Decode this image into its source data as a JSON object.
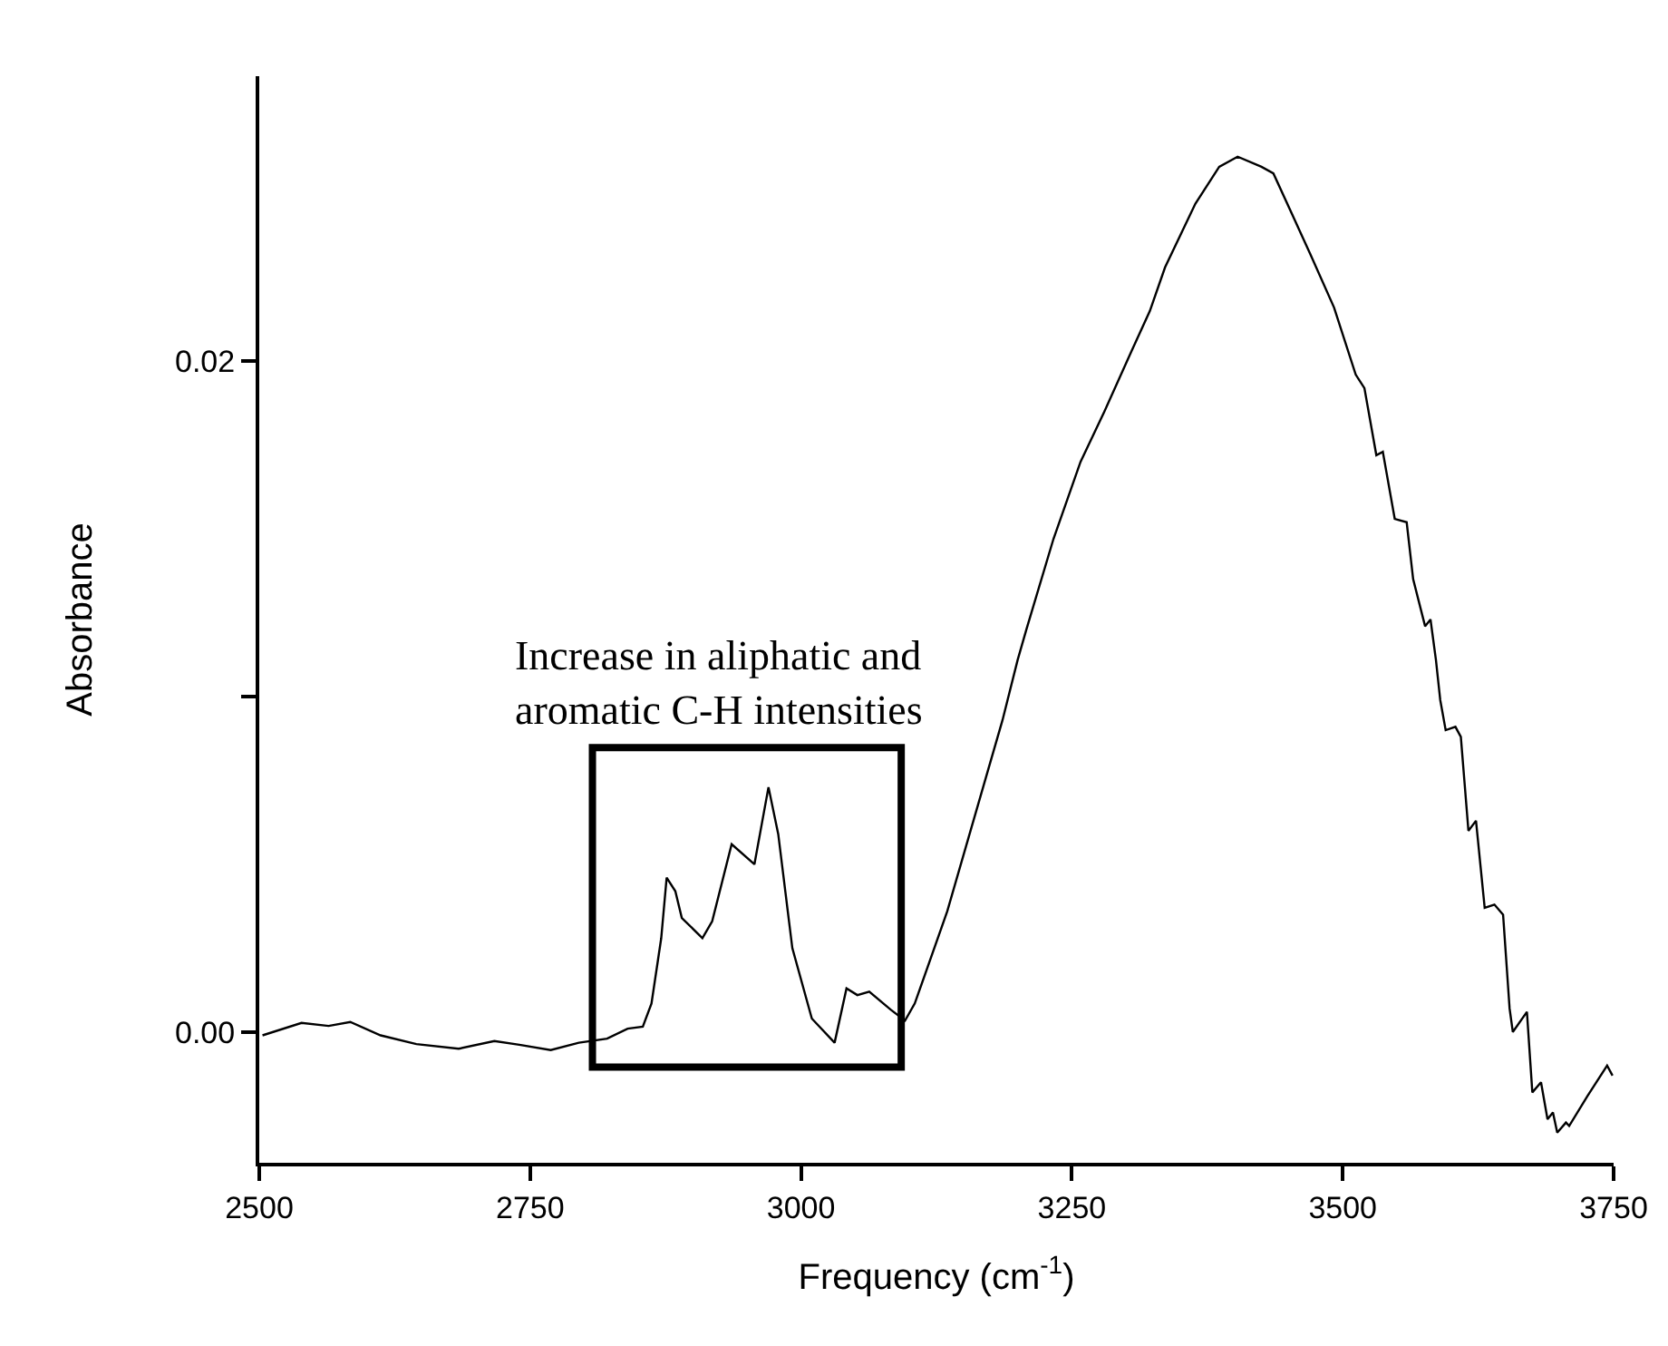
{
  "chart_data": {
    "type": "line",
    "xlabel": "Frequency (cm$^{-1}$)",
    "ylabel": "Absorbance",
    "xlim": [
      2500,
      3750
    ],
    "xticks": [
      2500,
      2750,
      3000,
      3250,
      3500,
      3750
    ],
    "ylim": [
      -0.0039,
      0.0285
    ],
    "yticks": [
      {
        "value": 0.0,
        "label": "0.00"
      },
      {
        "value": 0.01,
        "label": null
      },
      {
        "value": 0.02,
        "label": "0.02"
      }
    ],
    "marker": "none",
    "line_style": "solid",
    "annotations": [
      "Increase in aliphatic and\naromatic C-H intensities"
    ],
    "series": [
      {
        "color": "#000000",
        "x": [
          2503,
          2539,
          2564,
          2584,
          2612,
          2645,
          2684,
          2717,
          2740,
          2769,
          2795,
          2821,
          2840,
          2854,
          2862,
          2871,
          2876,
          2884,
          2890,
          2909,
          2918,
          2936,
          2957,
          2970,
          2979,
          2992,
          3010,
          3031,
          3042,
          3052,
          3063,
          3083,
          3096,
          3105,
          3135,
          3169,
          3186,
          3200,
          3208,
          3233,
          3258,
          3280,
          3305,
          3322,
          3336,
          3364,
          3386,
          3403,
          3425,
          3436,
          3453,
          3470,
          3492,
          3512,
          3520,
          3531,
          3537,
          3548,
          3559,
          3565,
          3576,
          3581,
          3586,
          3590,
          3595,
          3604,
          3609,
          3616,
          3623,
          3631,
          3640,
          3648,
          3654,
          3657,
          3670,
          3675,
          3683,
          3689,
          3694,
          3698,
          3706,
          3709,
          3726,
          3744,
          3749
        ],
        "values": [
          -0.0001,
          0.00027,
          0.00018,
          0.0003,
          -0.0001,
          -0.00036,
          -0.0005,
          -0.00027,
          -0.00038,
          -0.00054,
          -0.00032,
          -0.0002,
          0.0001,
          0.00016,
          0.00085,
          0.0028,
          0.0046,
          0.0042,
          0.0034,
          0.0028,
          0.0033,
          0.0056,
          0.005,
          0.0073,
          0.0059,
          0.0025,
          0.0004,
          -0.00032,
          0.0013,
          0.0011,
          0.0012,
          0.00066,
          0.00034,
          0.00085,
          0.0036,
          0.0074,
          0.0093,
          0.0111,
          0.012,
          0.0147,
          0.017,
          0.0185,
          0.0203,
          0.0215,
          0.0228,
          0.0247,
          0.0258,
          0.0261,
          0.0258,
          0.0256,
          0.0244,
          0.0232,
          0.0216,
          0.0196,
          0.0192,
          0.0172,
          0.0173,
          0.0153,
          0.0152,
          0.0135,
          0.0121,
          0.0123,
          0.0111,
          0.0099,
          0.009,
          0.0091,
          0.0088,
          0.006,
          0.0063,
          0.0037,
          0.0038,
          0.0035,
          0.0007,
          0.0,
          0.0006,
          -0.0018,
          -0.0015,
          -0.0026,
          -0.0024,
          -0.003,
          -0.0027,
          -0.0028,
          -0.0019,
          -0.001,
          -0.0013
        ]
      }
    ]
  }
}
